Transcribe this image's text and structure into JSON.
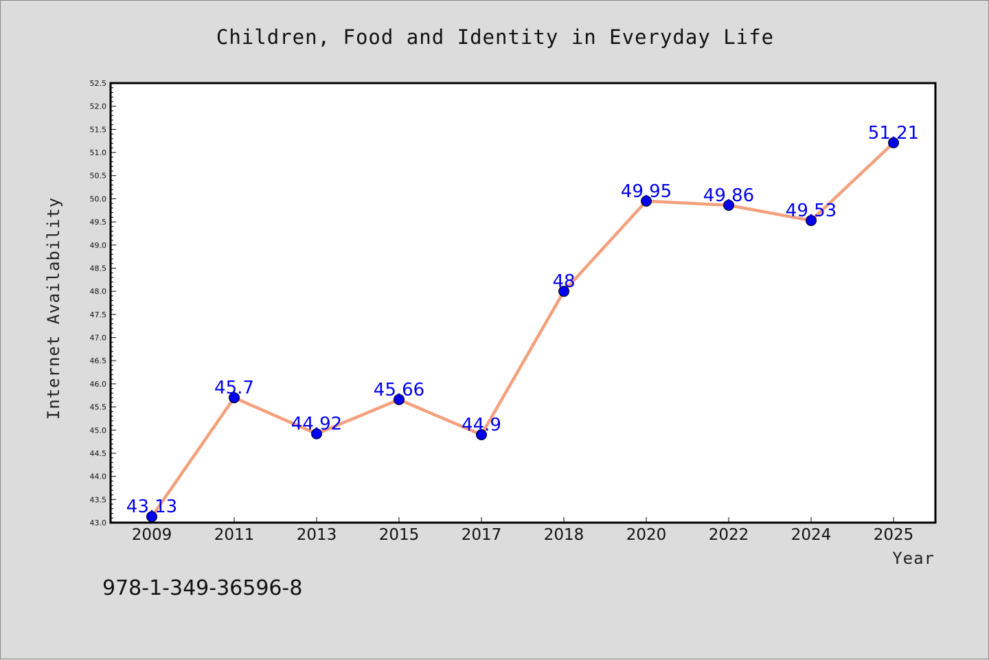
{
  "chart_data": {
    "type": "line",
    "title": "Children, Food and Identity in Everyday Life",
    "xlabel": "Year",
    "ylabel": "Internet Availability",
    "categories": [
      "2009",
      "2011",
      "2013",
      "2015",
      "2017",
      "2018",
      "2020",
      "2022",
      "2024",
      "2025"
    ],
    "values": [
      43.13,
      45.7,
      44.92,
      45.66,
      44.9,
      48,
      49.95,
      49.86,
      49.53,
      51.21
    ],
    "data_labels": [
      "43.13",
      "45.7",
      "44.92",
      "45.66",
      "44.9",
      "48",
      "49.95",
      "49.86",
      "49.53",
      "51.21"
    ],
    "ylim": [
      43.0,
      52.5
    ],
    "y_ticks": [
      "43.0",
      "43.5",
      "44.0",
      "44.5",
      "45.0",
      "45.5",
      "46.0",
      "46.5",
      "47.0",
      "47.5",
      "48.0",
      "48.5",
      "49.0",
      "49.5",
      "50.0",
      "50.5",
      "51.0",
      "51.5",
      "52.0",
      "52.5"
    ],
    "grid": false,
    "line_color": "#f4a07c",
    "marker_color": "#0000ee",
    "label_color": "#0000ee"
  },
  "footer": {
    "isbn": "978-1-349-36596-8"
  }
}
